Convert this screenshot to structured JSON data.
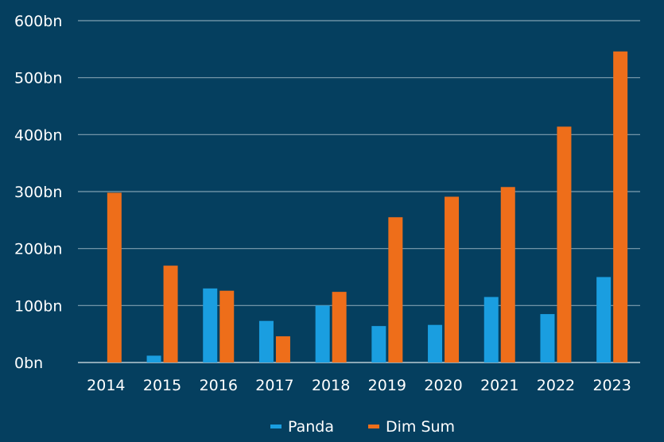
{
  "chart_data": {
    "type": "bar",
    "title": "",
    "xlabel": "",
    "ylabel": "",
    "categories": [
      "2014",
      "2015",
      "2016",
      "2017",
      "2018",
      "2019",
      "2020",
      "2021",
      "2022",
      "2023"
    ],
    "series": [
      {
        "name": "Panda",
        "color": "#1a9ee0",
        "values": [
          0,
          12,
          130,
          73,
          100,
          64,
          66,
          115,
          85,
          150
        ]
      },
      {
        "name": "Dim Sum",
        "color": "#ee6e1a",
        "values": [
          298,
          170,
          126,
          46,
          124,
          255,
          291,
          308,
          414,
          546
        ]
      }
    ],
    "ylim": [
      0,
      600
    ],
    "yticks": [
      0,
      100,
      200,
      300,
      400,
      500,
      600
    ],
    "ytick_labels": [
      "0bn",
      "100bn",
      "200bn",
      "300bn",
      "400bn",
      "500bn",
      "600bn"
    ],
    "grid": true,
    "legend_position": "bottom-center",
    "colors": {
      "background": "#053f5f",
      "grid": "#7f9fb0",
      "text": "#ffffff"
    }
  }
}
